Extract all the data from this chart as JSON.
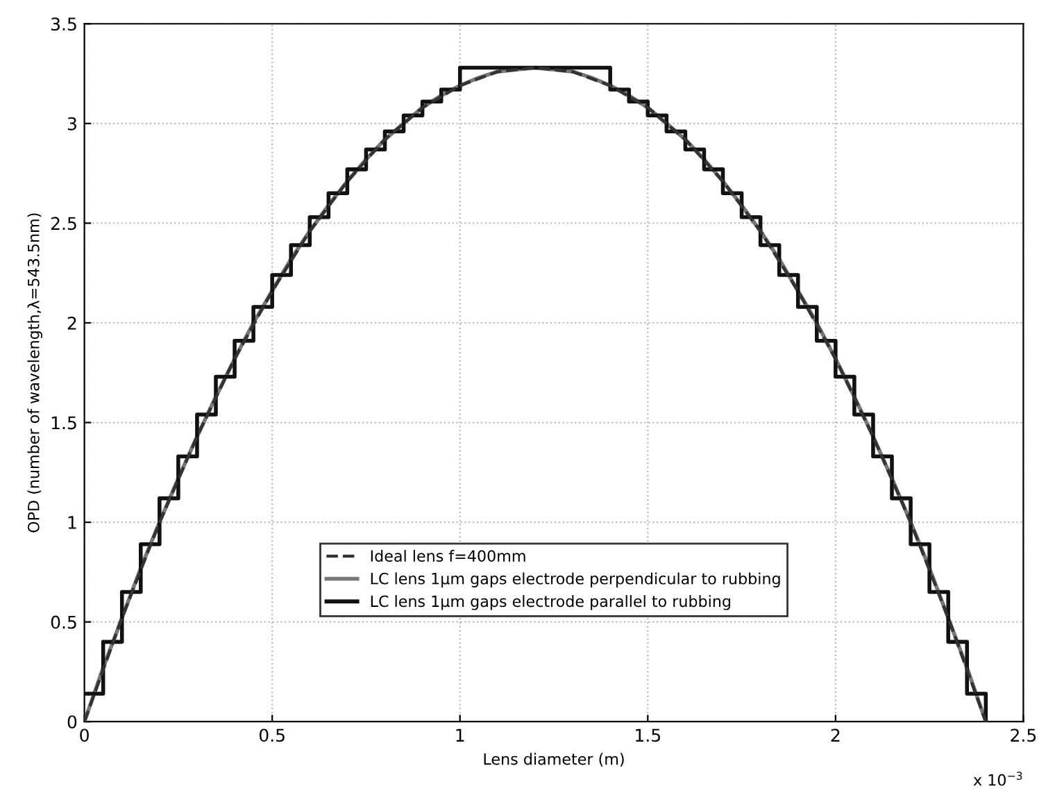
{
  "chart_data": {
    "type": "line",
    "xlabel": "Lens diameter (m)",
    "ylabel": "OPD (number of wavelength,λ=543.5nm)",
    "annotations": [
      "x 10$^{−3}$"
    ],
    "xlim": [
      0,
      2.5
    ],
    "xticks": [
      0,
      0.5,
      1,
      1.5,
      2,
      2.5
    ],
    "ylim": [
      0,
      3.5
    ],
    "yticks": [
      0,
      0.5,
      1,
      1.5,
      2,
      2.5,
      3,
      3.5
    ],
    "grid": true,
    "legend": "bottom",
    "series": [
      {
        "name": "Ideal lens f=400mm",
        "color": "#333333",
        "line_style": "dashed",
        "x": [
          0,
          0.1,
          0.2,
          0.3,
          0.4,
          0.5,
          0.6,
          0.7,
          0.8,
          0.9,
          1.0,
          1.1,
          1.2,
          1.3,
          1.4,
          1.5,
          1.6,
          1.7,
          1.8,
          1.9,
          2.0,
          2.1,
          2.2,
          2.3,
          2.4
        ],
        "values": [
          0,
          0.52,
          1.0,
          1.43,
          1.82,
          2.16,
          2.46,
          2.71,
          2.92,
          3.08,
          3.19,
          3.26,
          3.28,
          3.26,
          3.19,
          3.08,
          2.92,
          2.71,
          2.46,
          2.16,
          1.82,
          1.43,
          1.0,
          0.52,
          0
        ]
      },
      {
        "name": "LC lens 1μm gaps electrode perpendicular to rubbing",
        "color": "#777777",
        "line_style": "solid",
        "x": [
          0,
          0.05,
          0.1,
          0.15,
          0.2,
          0.25,
          0.3,
          0.35,
          0.4,
          0.45,
          0.5,
          0.55,
          0.6,
          0.65,
          0.7,
          0.75,
          0.8,
          0.85,
          0.9,
          0.95,
          1.0,
          1.05,
          1.1,
          1.15,
          1.2,
          1.25,
          1.3,
          1.35,
          1.4,
          1.45,
          1.5,
          1.55,
          1.6,
          1.65,
          1.7,
          1.75,
          1.8,
          1.85,
          1.9,
          1.95,
          2.0,
          2.05,
          2.1,
          2.15,
          2.2,
          2.25,
          2.3,
          2.35,
          2.4
        ],
        "values": [
          0,
          0.27,
          0.52,
          0.77,
          1.0,
          1.22,
          1.43,
          1.63,
          1.82,
          2.0,
          2.16,
          2.32,
          2.46,
          2.59,
          2.71,
          2.82,
          2.92,
          3.0,
          3.08,
          3.14,
          3.19,
          3.23,
          3.26,
          3.27,
          3.28,
          3.27,
          3.26,
          3.23,
          3.19,
          3.14,
          3.08,
          3.0,
          2.92,
          2.82,
          2.71,
          2.59,
          2.46,
          2.32,
          2.16,
          2.0,
          1.82,
          1.63,
          1.43,
          1.22,
          1.0,
          0.77,
          0.52,
          0.27,
          0
        ]
      },
      {
        "name": "LC lens 1μm gaps electrode parallel to rubbing",
        "color": "#111111",
        "type": "step",
        "line_style": "solid",
        "x": [
          0,
          0.05,
          0.1,
          0.15,
          0.2,
          0.25,
          0.3,
          0.35,
          0.4,
          0.45,
          0.5,
          0.55,
          0.6,
          0.65,
          0.7,
          0.75,
          0.8,
          0.85,
          0.9,
          0.95,
          1.0,
          1.4,
          1.45,
          1.5,
          1.55,
          1.6,
          1.65,
          1.7,
          1.75,
          1.8,
          1.85,
          1.9,
          1.95,
          2.0,
          2.05,
          2.1,
          2.15,
          2.2,
          2.25,
          2.3,
          2.35,
          2.4
        ],
        "values": [
          0.14,
          0.4,
          0.65,
          0.89,
          1.12,
          1.33,
          1.54,
          1.73,
          1.91,
          2.08,
          2.24,
          2.39,
          2.53,
          2.65,
          2.77,
          2.87,
          2.96,
          3.04,
          3.11,
          3.17,
          3.28,
          3.17,
          3.11,
          3.04,
          2.96,
          2.87,
          2.77,
          2.65,
          2.53,
          2.39,
          2.24,
          2.08,
          1.91,
          1.73,
          1.54,
          1.33,
          1.12,
          0.89,
          0.65,
          0.4,
          0.14,
          0
        ]
      }
    ]
  }
}
